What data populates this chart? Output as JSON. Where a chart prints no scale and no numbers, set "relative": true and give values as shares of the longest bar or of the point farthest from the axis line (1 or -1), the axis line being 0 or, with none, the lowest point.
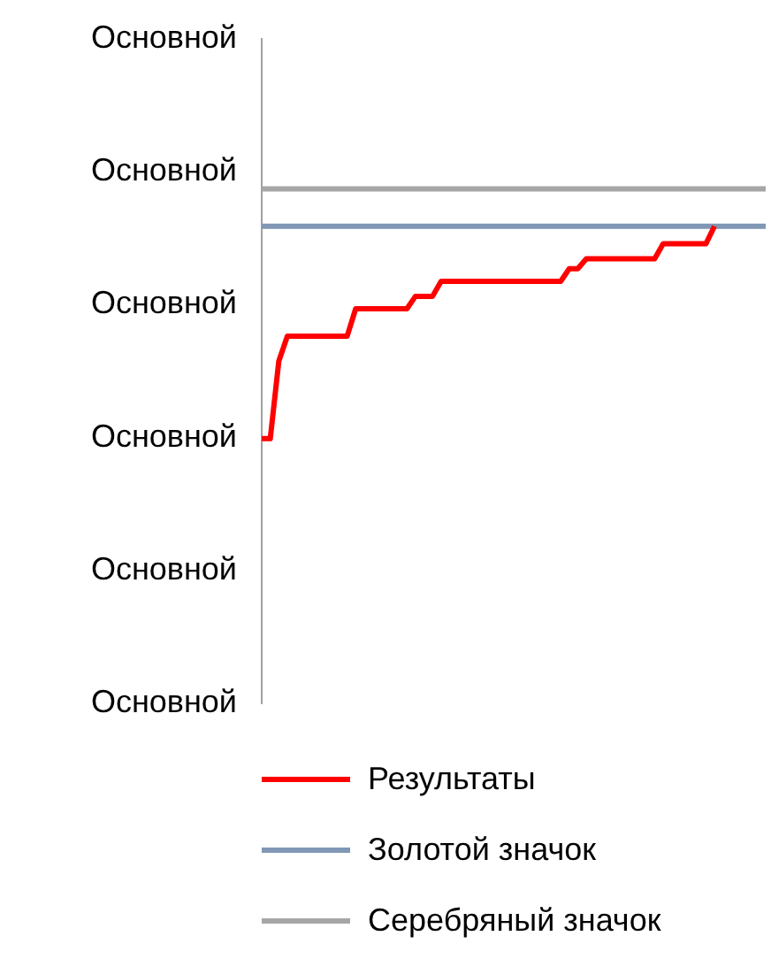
{
  "chart_data": {
    "type": "line",
    "categories": [
      null,
      null,
      null,
      null,
      null,
      null,
      null,
      null,
      null,
      null,
      null,
      null,
      null,
      null,
      null,
      null,
      null,
      null,
      null,
      null,
      null,
      null,
      null,
      null,
      null,
      null,
      null,
      null,
      null,
      null,
      null,
      null,
      null,
      null,
      null,
      null,
      null,
      null,
      null,
      null,
      null,
      null,
      null,
      null,
      null,
      null,
      null,
      null,
      null,
      null,
      null,
      null,
      null,
      null,
      null,
      null,
      null,
      null,
      null,
      null
    ],
    "series": [
      {
        "name": "Результаты",
        "color": "#ff0000",
        "values": [
          0,
          0,
          0.31,
          0.41,
          0.41,
          0.41,
          0.41,
          0.41,
          0.41,
          0.41,
          0.41,
          0.52,
          0.52,
          0.52,
          0.52,
          0.52,
          0.52,
          0.52,
          0.57,
          0.57,
          0.57,
          0.63,
          0.63,
          0.63,
          0.63,
          0.63,
          0.63,
          0.63,
          0.63,
          0.63,
          0.63,
          0.63,
          0.63,
          0.63,
          0.63,
          0.63,
          0.68,
          0.68,
          0.72,
          0.72,
          0.72,
          0.72,
          0.72,
          0.72,
          0.72,
          0.72,
          0.72,
          0.78,
          0.78,
          0.78,
          0.78,
          0.78,
          0.78,
          0.85,
          null,
          null,
          null,
          null,
          null,
          null
        ]
      },
      {
        "name": "Золотой значок",
        "color": "#8097b5",
        "values": [
          0.85,
          0.85,
          0.85,
          0.85,
          0.85,
          0.85,
          0.85,
          0.85,
          0.85,
          0.85,
          0.85,
          0.85,
          0.85,
          0.85,
          0.85,
          0.85,
          0.85,
          0.85,
          0.85,
          0.85,
          0.85,
          0.85,
          0.85,
          0.85,
          0.85,
          0.85,
          0.85,
          0.85,
          0.85,
          0.85,
          0.85,
          0.85,
          0.85,
          0.85,
          0.85,
          0.85,
          0.85,
          0.85,
          0.85,
          0.85,
          0.85,
          0.85,
          0.85,
          0.85,
          0.85,
          0.85,
          0.85,
          0.85,
          0.85,
          0.85,
          0.85,
          0.85,
          0.85,
          0.85,
          0.85,
          0.85,
          0.85,
          0.85,
          0.85,
          0.85
        ]
      },
      {
        "name": "Серебряный значок",
        "color": "#a6a6a6",
        "values": [
          1,
          1,
          1,
          1,
          1,
          1,
          1,
          1,
          1,
          1,
          1,
          1,
          1,
          1,
          1,
          1,
          1,
          1,
          1,
          1,
          1,
          1,
          1,
          1,
          1,
          1,
          1,
          1,
          1,
          1,
          1,
          1,
          1,
          1,
          1,
          1,
          1,
          1,
          1,
          1,
          1,
          1,
          1,
          1,
          1,
          1,
          1,
          1,
          1,
          1,
          1,
          1,
          1,
          1,
          1,
          1,
          1,
          1,
          1,
          1
        ]
      }
    ],
    "relative": true,
    "annotations": [
      "Основной",
      "Основной",
      "Основной",
      "Основной",
      "Основной",
      "Основной"
    ],
    "grid": false,
    "legend": "bottom",
    "marker": "none",
    "line_style": "solid"
  }
}
